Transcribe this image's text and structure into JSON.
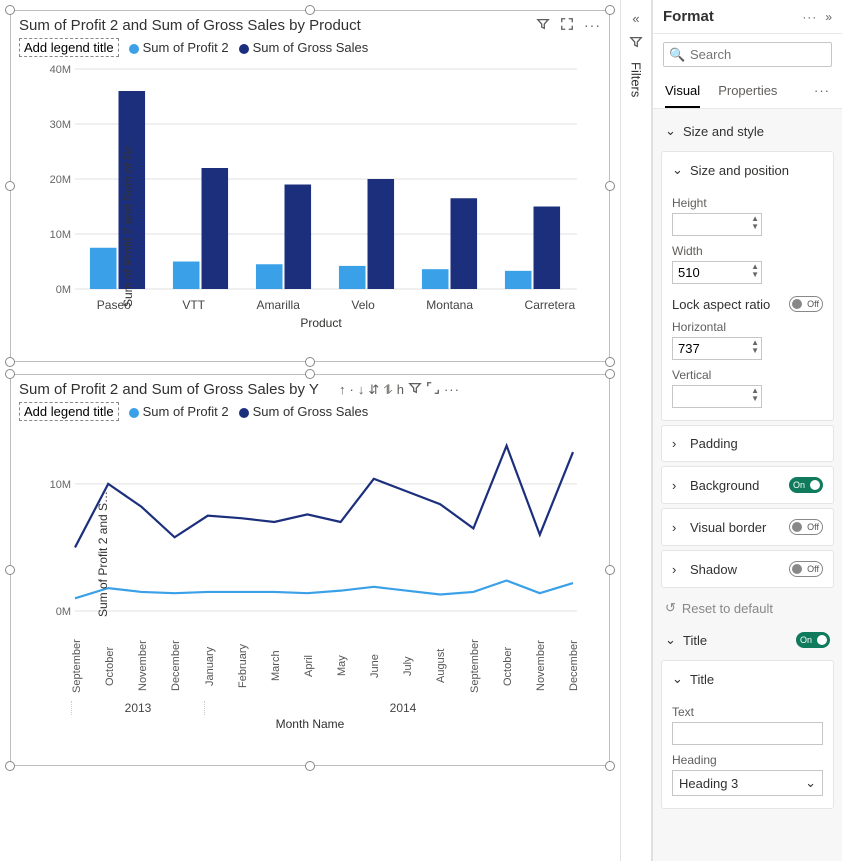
{
  "panel": {
    "title": "Format",
    "search_placeholder": "Search",
    "tabs": {
      "visual": "Visual",
      "properties": "Properties"
    },
    "size_style": "Size and style",
    "size_position": {
      "label": "Size and position",
      "height_label": "Height",
      "height_value": "",
      "width_label": "Width",
      "width_value": "510",
      "lock_label": "Lock aspect ratio",
      "horizontal_label": "Horizontal",
      "horizontal_value": "737",
      "vertical_label": "Vertical",
      "vertical_value": ""
    },
    "padding": "Padding",
    "background": "Background",
    "visual_border": "Visual border",
    "shadow": "Shadow",
    "reset": "Reset to default",
    "title_section": "Title",
    "title_card": {
      "label": "Title",
      "text_label": "Text",
      "text_value": "",
      "heading_label": "Heading",
      "heading_value": "Heading 3"
    },
    "toggle_on": "On",
    "toggle_off": "Off"
  },
  "filters_tab": "Filters",
  "chart1": {
    "title": "Sum of Profit 2 and Sum of Gross Sales by Product",
    "legend_ph": "Add legend title",
    "series1_name": "Sum of Profit 2",
    "series2_name": "Sum of Gross Sales",
    "y_axis_label": "Sum of Profit 2 and Sum of Gr…",
    "x_axis_label": "Product",
    "color1": "#3aa0e8",
    "color2": "#1c2f7c",
    "grid_color": "#e0e0e0",
    "y_ticks": [
      "0M",
      "10M",
      "20M",
      "30M",
      "40M"
    ],
    "y_max": 40,
    "categories": [
      "Paseo",
      "VTT",
      "Amarilla",
      "Velo",
      "Montana",
      "Carretera"
    ],
    "series1_values": [
      7.5,
      5,
      4.5,
      4.2,
      3.6,
      3.3
    ],
    "series2_values": [
      36,
      22,
      19,
      20,
      16.5,
      15
    ]
  },
  "chart2": {
    "title": "Sum of Profit 2 and Sum of Gross Sales by Y",
    "legend_ph": "Add legend title",
    "series1_name": "Sum of Profit 2",
    "series2_name": "Sum of Gross Sales",
    "y_axis_label": "Sum of Profit 2 and S…",
    "x_axis_label": "Month Name",
    "color1": "#3aa0e8",
    "color2": "#1c2f7c",
    "grid_color": "#e0e0e0",
    "y_ticks": [
      "0M",
      "10M"
    ],
    "y_max": 14,
    "months": [
      "September",
      "October",
      "November",
      "December",
      "January",
      "February",
      "March",
      "April",
      "May",
      "June",
      "July",
      "August",
      "September",
      "October",
      "November",
      "December"
    ],
    "years": [
      {
        "label": "2013",
        "span": 4
      },
      {
        "label": "2014",
        "span": 12
      }
    ],
    "series1_values": [
      1.0,
      1.8,
      1.5,
      1.4,
      1.5,
      1.5,
      1.5,
      1.4,
      1.6,
      1.9,
      1.6,
      1.3,
      1.5,
      2.4,
      1.4,
      2.2
    ],
    "series2_values": [
      5.0,
      10.0,
      8.2,
      5.8,
      7.5,
      7.3,
      7.0,
      7.6,
      7.0,
      10.4,
      9.4,
      8.4,
      6.5,
      13.0,
      6.0,
      12.5
    ]
  }
}
